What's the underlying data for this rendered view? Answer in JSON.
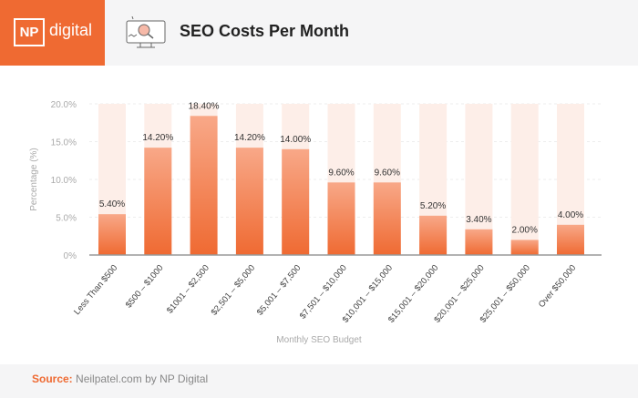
{
  "header": {
    "logo_np": "NP",
    "logo_text": "digital",
    "title": "SEO Costs Per Month",
    "icon": "monitor-search-icon"
  },
  "footer": {
    "source_label": "Source:",
    "source_text": "Neilpatel.com by NP Digital"
  },
  "colors": {
    "bar": "#ef6a32",
    "bar_light": "#f8a888",
    "track": "#fdeee8",
    "accent": "#ef6a32"
  },
  "chart_data": {
    "type": "bar",
    "title": "SEO Costs Per Month",
    "xlabel": "Monthly SEO Budget",
    "ylabel": "Percentage (%)",
    "ylim": [
      0,
      20
    ],
    "yticks": [
      "0%",
      "5.0%",
      "10.0%",
      "15.0%",
      "20.0%"
    ],
    "ytick_values": [
      0,
      5,
      10,
      15,
      20
    ],
    "categories": [
      "Less Than $500",
      "$500 – $1000",
      "$1001 – $2,500",
      "$2,501 – $5,000",
      "$5,001 – $7,500",
      "$7,501 – $10,000",
      "$10,001 – $15,000",
      "$15,001 – $20,000",
      "$20,001 – $25,000",
      "$25,001 – $50,000",
      "Over $50,000"
    ],
    "values": [
      5.4,
      14.2,
      18.4,
      14.2,
      14.0,
      9.6,
      9.6,
      5.2,
      3.4,
      2.0,
      4.0
    ],
    "labels": [
      "5.40%",
      "14.20%",
      "18.40%",
      "14.20%",
      "14.00%",
      "9.60%",
      "9.60%",
      "5.20%",
      "3.40%",
      "2.00%",
      "4.00%"
    ],
    "grid": true
  }
}
